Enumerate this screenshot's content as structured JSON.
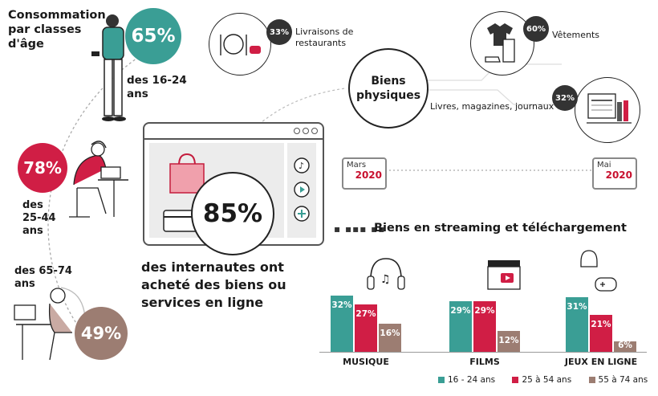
{
  "title": "Consommation par classes d'âge",
  "title_lines": [
    "Consommation",
    "par classes",
    "d'âge"
  ],
  "age_groups": [
    {
      "pct": "65%",
      "label_lines": [
        "des 16-24",
        "ans"
      ],
      "color": "#3a9e95"
    },
    {
      "pct": "78%",
      "label_lines": [
        "des",
        "25-44",
        "ans"
      ],
      "color": "#d01e45"
    },
    {
      "pct": "49%",
      "label_lines": [
        "des 65-74",
        "ans"
      ],
      "color": "#9c7d72"
    }
  ],
  "headline": {
    "pct": "85%",
    "lines": [
      "des internautes ont",
      "acheté des biens ou",
      "services en ligne"
    ]
  },
  "physical_goods": {
    "label_lines": [
      "Biens",
      "physiques"
    ],
    "items": [
      {
        "pct": "33%",
        "label_lines": [
          "Livraisons de",
          "restaurants"
        ]
      },
      {
        "pct": "60%",
        "label_lines": [
          "Vêtements"
        ]
      },
      {
        "pct": "32%",
        "label_lines": [
          "Livres, magazines, journaux"
        ]
      }
    ]
  },
  "period": {
    "start": {
      "month": "Mars",
      "year": "2020"
    },
    "end": {
      "month": "Mai",
      "year": "2020"
    }
  },
  "chart_data": {
    "type": "bar",
    "title": "Biens en streaming et téléchargement",
    "categories": [
      "MUSIQUE",
      "FILMS",
      "JEUX EN LIGNE"
    ],
    "series": [
      {
        "name": "16 - 24 ans",
        "values": [
          32,
          29,
          31
        ],
        "color": "#3a9e95"
      },
      {
        "name": "25 à 54 ans",
        "values": [
          27,
          29,
          21
        ],
        "color": "#d01e45"
      },
      {
        "name": "55 à 74 ans",
        "values": [
          16,
          12,
          6
        ],
        "color": "#9c7d72"
      }
    ],
    "value_suffix": "%",
    "ylim": [
      0,
      35
    ]
  }
}
